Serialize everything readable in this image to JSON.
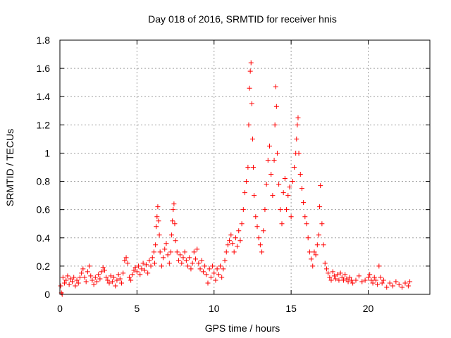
{
  "chart_data": {
    "type": "scatter",
    "title": "Day 018 of 2016, SRMTID for receiver hnis",
    "xlabel": "GPS time / hours",
    "ylabel": "SRMTID / TECUs",
    "xlim": [
      0,
      24
    ],
    "ylim": [
      0,
      1.8
    ],
    "xticks": [
      0,
      5,
      10,
      15,
      20
    ],
    "yticks": [
      0,
      0.2,
      0.4,
      0.6,
      0.8,
      1,
      1.2,
      1.4,
      1.6,
      1.8
    ],
    "ytick_labels": [
      "0",
      "0.2",
      "0.4",
      "0.6",
      "0.8",
      "1",
      "1.2",
      "1.4",
      "1.6",
      "1.8"
    ],
    "grid": true,
    "marker": "+",
    "color": "#ff0000",
    "series": [
      {
        "name": "SRMTID",
        "points": [
          [
            0.05,
            0.06
          ],
          [
            0.1,
            0.01
          ],
          [
            0.15,
            0.0
          ],
          [
            0.2,
            0.12
          ],
          [
            0.3,
            0.08
          ],
          [
            0.4,
            0.1
          ],
          [
            0.5,
            0.13
          ],
          [
            0.6,
            0.07
          ],
          [
            0.7,
            0.11
          ],
          [
            0.8,
            0.09
          ],
          [
            0.9,
            0.12
          ],
          [
            1.0,
            0.06
          ],
          [
            1.1,
            0.1
          ],
          [
            1.2,
            0.08
          ],
          [
            1.3,
            0.12
          ],
          [
            1.4,
            0.15
          ],
          [
            1.5,
            0.18
          ],
          [
            1.6,
            0.12
          ],
          [
            1.7,
            0.09
          ],
          [
            1.8,
            0.16
          ],
          [
            1.9,
            0.2
          ],
          [
            2.0,
            0.13
          ],
          [
            2.1,
            0.1
          ],
          [
            2.2,
            0.07
          ],
          [
            2.3,
            0.12
          ],
          [
            2.4,
            0.09
          ],
          [
            2.5,
            0.14
          ],
          [
            2.6,
            0.11
          ],
          [
            2.7,
            0.16
          ],
          [
            2.8,
            0.19
          ],
          [
            2.9,
            0.17
          ],
          [
            3.0,
            0.12
          ],
          [
            3.1,
            0.1
          ],
          [
            3.2,
            0.08
          ],
          [
            3.3,
            0.13
          ],
          [
            3.4,
            0.09
          ],
          [
            3.5,
            0.12
          ],
          [
            3.6,
            0.06
          ],
          [
            3.7,
            0.1
          ],
          [
            3.8,
            0.14
          ],
          [
            3.9,
            0.11
          ],
          [
            4.0,
            0.08
          ],
          [
            4.1,
            0.15
          ],
          [
            4.2,
            0.24
          ],
          [
            4.3,
            0.26
          ],
          [
            4.4,
            0.22
          ],
          [
            4.5,
            0.12
          ],
          [
            4.6,
            0.1
          ],
          [
            4.7,
            0.14
          ],
          [
            4.8,
            0.17
          ],
          [
            4.9,
            0.19
          ],
          [
            5.0,
            0.16
          ],
          [
            5.1,
            0.2
          ],
          [
            5.2,
            0.14
          ],
          [
            5.3,
            0.18
          ],
          [
            5.4,
            0.22
          ],
          [
            5.5,
            0.17
          ],
          [
            5.6,
            0.21
          ],
          [
            5.7,
            0.15
          ],
          [
            5.8,
            0.24
          ],
          [
            5.9,
            0.2
          ],
          [
            6.0,
            0.26
          ],
          [
            6.1,
            0.3
          ],
          [
            6.15,
            0.22
          ],
          [
            6.2,
            0.35
          ],
          [
            6.25,
            0.48
          ],
          [
            6.3,
            0.55
          ],
          [
            6.35,
            0.62
          ],
          [
            6.4,
            0.52
          ],
          [
            6.45,
            0.42
          ],
          [
            6.5,
            0.3
          ],
          [
            6.6,
            0.2
          ],
          [
            6.7,
            0.26
          ],
          [
            6.8,
            0.32
          ],
          [
            6.9,
            0.36
          ],
          [
            7.0,
            0.28
          ],
          [
            7.1,
            0.22
          ],
          [
            7.2,
            0.3
          ],
          [
            7.25,
            0.42
          ],
          [
            7.3,
            0.52
          ],
          [
            7.35,
            0.6
          ],
          [
            7.4,
            0.64
          ],
          [
            7.45,
            0.5
          ],
          [
            7.5,
            0.38
          ],
          [
            7.6,
            0.3
          ],
          [
            7.7,
            0.24
          ],
          [
            7.8,
            0.28
          ],
          [
            7.9,
            0.22
          ],
          [
            8.0,
            0.26
          ],
          [
            8.1,
            0.3
          ],
          [
            8.2,
            0.24
          ],
          [
            8.3,
            0.2
          ],
          [
            8.4,
            0.26
          ],
          [
            8.5,
            0.18
          ],
          [
            8.6,
            0.22
          ],
          [
            8.7,
            0.3
          ],
          [
            8.8,
            0.25
          ],
          [
            8.9,
            0.32
          ],
          [
            9.0,
            0.22
          ],
          [
            9.1,
            0.18
          ],
          [
            9.2,
            0.24
          ],
          [
            9.3,
            0.16
          ],
          [
            9.4,
            0.2
          ],
          [
            9.5,
            0.14
          ],
          [
            9.6,
            0.08
          ],
          [
            9.7,
            0.18
          ],
          [
            9.8,
            0.12
          ],
          [
            9.9,
            0.2
          ],
          [
            10.0,
            0.15
          ],
          [
            10.1,
            0.1
          ],
          [
            10.2,
            0.18
          ],
          [
            10.3,
            0.14
          ],
          [
            10.4,
            0.2
          ],
          [
            10.5,
            0.12
          ],
          [
            10.6,
            0.18
          ],
          [
            10.7,
            0.24
          ],
          [
            10.8,
            0.3
          ],
          [
            10.9,
            0.35
          ],
          [
            11.0,
            0.38
          ],
          [
            11.1,
            0.42
          ],
          [
            11.2,
            0.36
          ],
          [
            11.3,
            0.3
          ],
          [
            11.4,
            0.4
          ],
          [
            11.5,
            0.34
          ],
          [
            11.6,
            0.45
          ],
          [
            11.7,
            0.38
          ],
          [
            11.8,
            0.5
          ],
          [
            11.9,
            0.6
          ],
          [
            12.0,
            0.72
          ],
          [
            12.1,
            0.8
          ],
          [
            12.2,
            0.9
          ],
          [
            12.25,
            1.2
          ],
          [
            12.3,
            1.46
          ],
          [
            12.35,
            1.58
          ],
          [
            12.4,
            1.64
          ],
          [
            12.45,
            1.35
          ],
          [
            12.5,
            1.1
          ],
          [
            12.55,
            0.9
          ],
          [
            12.6,
            0.7
          ],
          [
            12.7,
            0.55
          ],
          [
            12.8,
            0.48
          ],
          [
            12.9,
            0.4
          ],
          [
            13.0,
            0.35
          ],
          [
            13.1,
            0.3
          ],
          [
            13.2,
            0.45
          ],
          [
            13.3,
            0.6
          ],
          [
            13.4,
            0.78
          ],
          [
            13.5,
            0.95
          ],
          [
            13.6,
            1.05
          ],
          [
            13.7,
            0.85
          ],
          [
            13.8,
            0.7
          ],
          [
            13.9,
            0.95
          ],
          [
            13.95,
            1.2
          ],
          [
            14.0,
            1.47
          ],
          [
            14.05,
            1.33
          ],
          [
            14.1,
            1.0
          ],
          [
            14.2,
            0.78
          ],
          [
            14.3,
            0.6
          ],
          [
            14.4,
            0.5
          ],
          [
            14.5,
            0.72
          ],
          [
            14.6,
            0.82
          ],
          [
            14.7,
            0.6
          ],
          [
            14.8,
            0.7
          ],
          [
            14.9,
            0.76
          ],
          [
            15.0,
            0.55
          ],
          [
            15.1,
            0.8
          ],
          [
            15.2,
            0.9
          ],
          [
            15.3,
            1.0
          ],
          [
            15.35,
            1.1
          ],
          [
            15.4,
            1.2
          ],
          [
            15.45,
            1.25
          ],
          [
            15.5,
            1.0
          ],
          [
            15.6,
            0.85
          ],
          [
            15.7,
            0.75
          ],
          [
            15.8,
            0.65
          ],
          [
            15.9,
            0.55
          ],
          [
            16.0,
            0.5
          ],
          [
            16.1,
            0.4
          ],
          [
            16.2,
            0.3
          ],
          [
            16.3,
            0.25
          ],
          [
            16.4,
            0.2
          ],
          [
            16.5,
            0.3
          ],
          [
            16.6,
            0.28
          ],
          [
            16.7,
            0.35
          ],
          [
            16.8,
            0.42
          ],
          [
            16.85,
            0.62
          ],
          [
            16.9,
            0.77
          ],
          [
            17.0,
            0.5
          ],
          [
            17.1,
            0.35
          ],
          [
            17.2,
            0.22
          ],
          [
            17.3,
            0.18
          ],
          [
            17.4,
            0.15
          ],
          [
            17.5,
            0.12
          ],
          [
            17.6,
            0.1
          ],
          [
            17.7,
            0.16
          ],
          [
            17.8,
            0.13
          ],
          [
            17.9,
            0.11
          ],
          [
            18.0,
            0.14
          ],
          [
            18.1,
            0.1
          ],
          [
            18.2,
            0.15
          ],
          [
            18.3,
            0.12
          ],
          [
            18.4,
            0.1
          ],
          [
            18.5,
            0.14
          ],
          [
            18.6,
            0.11
          ],
          [
            18.7,
            0.09
          ],
          [
            18.8,
            0.12
          ],
          [
            18.9,
            0.1
          ],
          [
            19.0,
            0.08
          ],
          [
            19.2,
            0.1
          ],
          [
            19.4,
            0.13
          ],
          [
            19.6,
            0.09
          ],
          [
            19.8,
            0.1
          ],
          [
            20.0,
            0.12
          ],
          [
            20.1,
            0.14
          ],
          [
            20.2,
            0.1
          ],
          [
            20.3,
            0.08
          ],
          [
            20.4,
            0.12
          ],
          [
            20.5,
            0.1
          ],
          [
            20.6,
            0.07
          ],
          [
            20.7,
            0.2
          ],
          [
            20.8,
            0.12
          ],
          [
            20.9,
            0.08
          ],
          [
            21.0,
            0.1
          ],
          [
            21.2,
            0.05
          ],
          [
            21.4,
            0.08
          ],
          [
            21.6,
            0.06
          ],
          [
            21.8,
            0.09
          ],
          [
            22.0,
            0.07
          ],
          [
            22.2,
            0.05
          ],
          [
            22.4,
            0.08
          ],
          [
            22.6,
            0.06
          ],
          [
            22.7,
            0.09
          ]
        ]
      }
    ]
  }
}
